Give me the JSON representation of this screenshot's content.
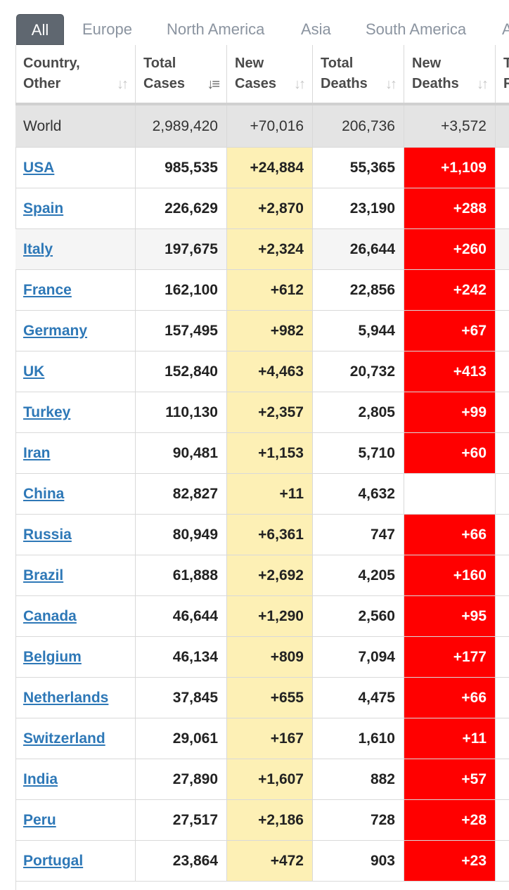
{
  "tabs": [
    "All",
    "Europe",
    "North America",
    "Asia",
    "South America",
    "A"
  ],
  "active_tab": "All",
  "headers": [
    {
      "line1": "Country,",
      "line2": "Other"
    },
    {
      "line1": "Total",
      "line2": "Cases"
    },
    {
      "line1": "New",
      "line2": "Cases"
    },
    {
      "line1": "Total",
      "line2": "Deaths"
    },
    {
      "line1": "New",
      "line2": "Deaths"
    },
    {
      "line1": "T",
      "line2": "R"
    }
  ],
  "colors": {
    "new_cases_bg": "#fdf0b5",
    "new_deaths_bg": "#ff0000",
    "link": "#2e78b7",
    "active_tab_bg": "#5f6770"
  },
  "world": {
    "country": "World",
    "total_cases": "2,989,420",
    "new_cases": "+70,016",
    "total_deaths": "206,736",
    "new_deaths": "+3,572"
  },
  "rows": [
    {
      "country": "USA",
      "total_cases": "985,535",
      "new_cases": "+24,884",
      "total_deaths": "55,365",
      "new_deaths": "+1,109"
    },
    {
      "country": "Spain",
      "total_cases": "226,629",
      "new_cases": "+2,870",
      "total_deaths": "23,190",
      "new_deaths": "+288"
    },
    {
      "country": "Italy",
      "total_cases": "197,675",
      "new_cases": "+2,324",
      "total_deaths": "26,644",
      "new_deaths": "+260"
    },
    {
      "country": "France",
      "total_cases": "162,100",
      "new_cases": "+612",
      "total_deaths": "22,856",
      "new_deaths": "+242"
    },
    {
      "country": "Germany",
      "total_cases": "157,495",
      "new_cases": "+982",
      "total_deaths": "5,944",
      "new_deaths": "+67"
    },
    {
      "country": "UK",
      "total_cases": "152,840",
      "new_cases": "+4,463",
      "total_deaths": "20,732",
      "new_deaths": "+413"
    },
    {
      "country": "Turkey",
      "total_cases": "110,130",
      "new_cases": "+2,357",
      "total_deaths": "2,805",
      "new_deaths": "+99"
    },
    {
      "country": "Iran",
      "total_cases": "90,481",
      "new_cases": "+1,153",
      "total_deaths": "5,710",
      "new_deaths": "+60"
    },
    {
      "country": "China",
      "total_cases": "82,827",
      "new_cases": "+11",
      "total_deaths": "4,632",
      "new_deaths": ""
    },
    {
      "country": "Russia",
      "total_cases": "80,949",
      "new_cases": "+6,361",
      "total_deaths": "747",
      "new_deaths": "+66"
    },
    {
      "country": "Brazil",
      "total_cases": "61,888",
      "new_cases": "+2,692",
      "total_deaths": "4,205",
      "new_deaths": "+160"
    },
    {
      "country": "Canada",
      "total_cases": "46,644",
      "new_cases": "+1,290",
      "total_deaths": "2,560",
      "new_deaths": "+95"
    },
    {
      "country": "Belgium",
      "total_cases": "46,134",
      "new_cases": "+809",
      "total_deaths": "7,094",
      "new_deaths": "+177"
    },
    {
      "country": "Netherlands",
      "total_cases": "37,845",
      "new_cases": "+655",
      "total_deaths": "4,475",
      "new_deaths": "+66"
    },
    {
      "country": "Switzerland",
      "total_cases": "29,061",
      "new_cases": "+167",
      "total_deaths": "1,610",
      "new_deaths": "+11"
    },
    {
      "country": "India",
      "total_cases": "27,890",
      "new_cases": "+1,607",
      "total_deaths": "882",
      "new_deaths": "+57"
    },
    {
      "country": "Peru",
      "total_cases": "27,517",
      "new_cases": "+2,186",
      "total_deaths": "728",
      "new_deaths": "+28"
    },
    {
      "country": "Portugal",
      "total_cases": "23,864",
      "new_cases": "+472",
      "total_deaths": "903",
      "new_deaths": "+23"
    }
  ]
}
